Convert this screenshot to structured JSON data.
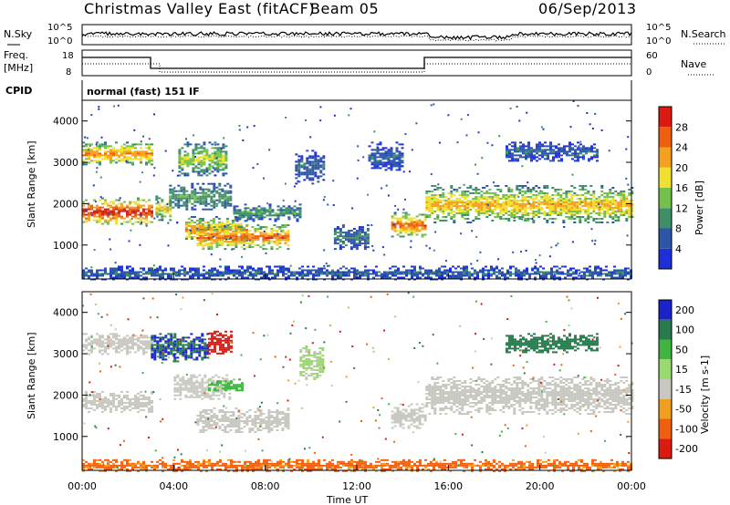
{
  "header": {
    "title": "Christmas Valley East (fitACF)",
    "beam": "Beam 05",
    "date": "06/Sep/2013"
  },
  "params": {
    "nsky_label": "N.Sky",
    "nsearch_label": "N.Search",
    "freq_label_1": "Freq.",
    "freq_label_2": "[MHz]",
    "nave_label": "Nave",
    "cpid_label": "CPID",
    "cpid_value": "normal (fast) 151 IF",
    "noise_ticks": [
      "10^5",
      "10^0"
    ],
    "freq_ticks": [
      "18",
      "8"
    ],
    "nave_ticks": [
      "60",
      "0"
    ]
  },
  "chart_data": [
    {
      "type": "heatmap",
      "title": "",
      "quantity": "Power",
      "xlabel": "",
      "ylabel": "Slant Range [km]",
      "xlim": [
        0,
        24
      ],
      "ylim": [
        180,
        4500
      ],
      "x_ticks": [
        "00:00",
        "04:00",
        "08:00",
        "12:00",
        "16:00",
        "20:00",
        "00:00"
      ],
      "y_ticks": [
        "1000",
        "2000",
        "3000",
        "4000"
      ],
      "y_tick_values": [
        1000,
        2000,
        3000,
        4000
      ],
      "colorbar": {
        "label": "Power [dB]",
        "ticks": [
          "4",
          "8",
          "12",
          "16",
          "20",
          "24",
          "28"
        ],
        "colors": [
          "#1f2fd8",
          "#2d56a8",
          "#3f8f6a",
          "#74c04c",
          "#f0e030",
          "#f4a020",
          "#ee6010",
          "#dd1a10"
        ]
      },
      "bands": [
        {
          "t": [
            0.0,
            3.0
          ],
          "r": [
            1500,
            2150
          ],
          "v": 26
        },
        {
          "t": [
            0.0,
            3.0
          ],
          "r": [
            2950,
            3500
          ],
          "v": 20
        },
        {
          "t": [
            3.2,
            3.8
          ],
          "r": [
            1600,
            2200
          ],
          "v": 16
        },
        {
          "t": [
            3.8,
            6.5
          ],
          "r": [
            1850,
            2500
          ],
          "v": 10
        },
        {
          "t": [
            4.2,
            6.3
          ],
          "r": [
            2700,
            3500
          ],
          "v": 14
        },
        {
          "t": [
            4.5,
            7.2
          ],
          "r": [
            1100,
            1700
          ],
          "v": 20
        },
        {
          "t": [
            6.6,
            9.5
          ],
          "r": [
            1600,
            2000
          ],
          "v": 10
        },
        {
          "t": [
            5.0,
            9.0
          ],
          "r": [
            900,
            1500
          ],
          "v": 22
        },
        {
          "t": [
            9.3,
            10.5
          ],
          "r": [
            2500,
            3300
          ],
          "v": 6
        },
        {
          "t": [
            11.0,
            12.5
          ],
          "r": [
            900,
            1500
          ],
          "v": 8
        },
        {
          "t": [
            12.5,
            14.0
          ],
          "r": [
            2800,
            3500
          ],
          "v": 6
        },
        {
          "t": [
            13.5,
            15.0
          ],
          "r": [
            1200,
            1800
          ],
          "v": 22
        },
        {
          "t": [
            15.0,
            24.0
          ],
          "r": [
            1550,
            2450
          ],
          "v": 18
        },
        {
          "t": [
            18.5,
            22.5
          ],
          "r": [
            3050,
            3500
          ],
          "v": 6
        },
        {
          "t": [
            0.0,
            24.0
          ],
          "r": [
            180,
            500
          ],
          "v": 6
        }
      ]
    },
    {
      "type": "heatmap",
      "title": "",
      "quantity": "Velocity",
      "xlabel": "Time UT",
      "ylabel": "Slant Range [km]",
      "xlim": [
        0,
        24
      ],
      "ylim": [
        180,
        4500
      ],
      "x_ticks": [
        "00:00",
        "04:00",
        "08:00",
        "12:00",
        "16:00",
        "20:00",
        "00:00"
      ],
      "y_ticks": [
        "1000",
        "2000",
        "3000",
        "4000"
      ],
      "y_tick_values": [
        1000,
        2000,
        3000,
        4000
      ],
      "colorbar": {
        "label": "Velocity [m s-1]",
        "ticks": [
          "200",
          "100",
          "50",
          "15",
          "-15",
          "-50",
          "-100",
          "-200"
        ],
        "colors": [
          "#1a22c8",
          "#2a7a50",
          "#3fb440",
          "#9ad870",
          "#c8c8c0",
          "#f0a020",
          "#ee6010",
          "#dd1a10"
        ]
      },
      "bands": [
        {
          "t": [
            0.0,
            3.0
          ],
          "r": [
            1600,
            2100
          ],
          "v": 0
        },
        {
          "t": [
            0.0,
            3.0
          ],
          "r": [
            3000,
            3500
          ],
          "v": 0
        },
        {
          "t": [
            3.0,
            4.0
          ],
          "r": [
            2800,
            3500
          ],
          "v": 200
        },
        {
          "t": [
            4.0,
            5.5
          ],
          "r": [
            2800,
            3500
          ],
          "v": 200
        },
        {
          "t": [
            5.5,
            6.5
          ],
          "r": [
            3000,
            3600
          ],
          "v": -200
        },
        {
          "t": [
            4.0,
            6.5
          ],
          "r": [
            1900,
            2500
          ],
          "v": 0
        },
        {
          "t": [
            5.5,
            7.0
          ],
          "r": [
            2100,
            2400
          ],
          "v": 60
        },
        {
          "t": [
            5.0,
            9.0
          ],
          "r": [
            1100,
            1700
          ],
          "v": 0
        },
        {
          "t": [
            9.5,
            10.5
          ],
          "r": [
            2400,
            3200
          ],
          "v": 20
        },
        {
          "t": [
            13.5,
            15.0
          ],
          "r": [
            1200,
            1800
          ],
          "v": 0
        },
        {
          "t": [
            15.0,
            24.0
          ],
          "r": [
            1550,
            2450
          ],
          "v": 0
        },
        {
          "t": [
            18.5,
            22.5
          ],
          "r": [
            3050,
            3500
          ],
          "v": 150
        },
        {
          "t": [
            0.0,
            24.0
          ],
          "r": [
            180,
            450
          ],
          "v": -60
        }
      ]
    }
  ],
  "colors": {
    "frame": "#000000",
    "background": "#ffffff"
  }
}
